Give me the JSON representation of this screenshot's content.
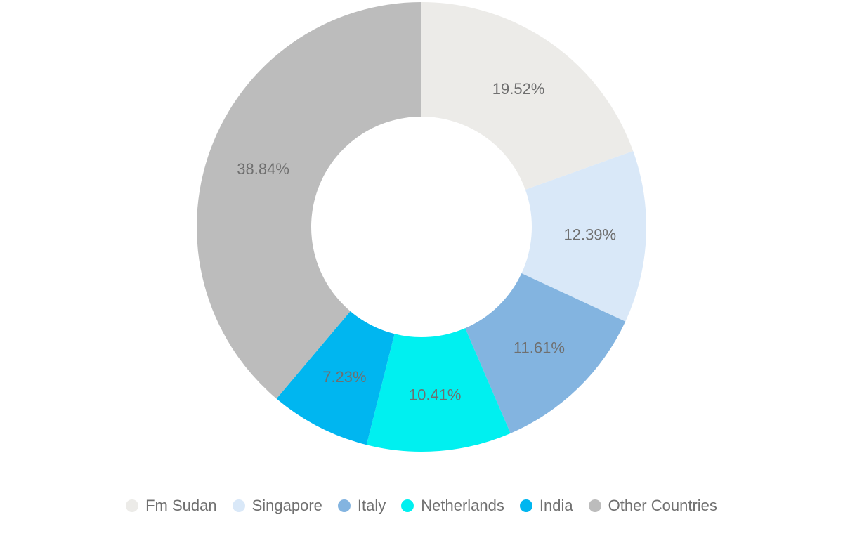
{
  "chart_data": {
    "type": "pie",
    "subtype": "donut",
    "title": "",
    "legend_position": "bottom",
    "legend_text_color": "#707070",
    "label_color": "#6F6F6F",
    "background_color": "#FFFFFF",
    "unit": "%",
    "categories": [
      "Fm Sudan",
      "Singapore",
      "Italy",
      "Netherlands",
      "India",
      "Other Countries"
    ],
    "values": [
      19.52,
      12.39,
      11.61,
      10.41,
      7.23,
      38.84
    ],
    "slices": [
      {
        "name": "Fm Sudan",
        "value": 19.52,
        "label": "19.52%",
        "color": "#ECEBE8"
      },
      {
        "name": "Singapore",
        "value": 12.39,
        "label": "12.39%",
        "color": "#D9E8F8"
      },
      {
        "name": "Italy",
        "value": 11.61,
        "label": "11.61%",
        "color": "#83B4E0"
      },
      {
        "name": "Netherlands",
        "value": 10.41,
        "label": "10.41%",
        "color": "#00F0F0"
      },
      {
        "name": "India",
        "value": 7.23,
        "label": "7.23%",
        "color": "#00B6F0"
      },
      {
        "name": "Other Countries",
        "value": 38.84,
        "label": "38.84%",
        "color": "#BCBCBC"
      }
    ]
  }
}
